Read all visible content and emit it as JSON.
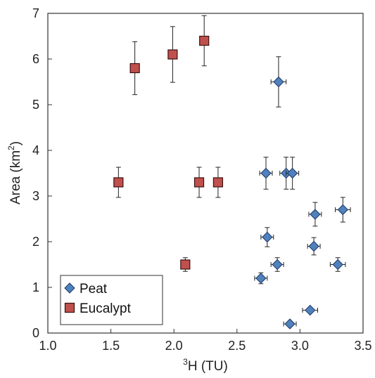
{
  "chart_data": {
    "type": "scatter",
    "xlabel": {
      "superscript": "3",
      "text": "H (TU)"
    },
    "ylabel": {
      "text": "Area (km",
      "superscript": "2",
      "suffix": ")"
    },
    "xlim": [
      1.0,
      3.5
    ],
    "ylim": [
      0,
      7
    ],
    "x_ticks": [
      "1.0",
      "1.5",
      "2.0",
      "2.5",
      "3.0",
      "3.5"
    ],
    "y_ticks": [
      "0",
      "1",
      "2",
      "3",
      "4",
      "5",
      "6",
      "7"
    ],
    "grid": false,
    "legend_position": "bottom-left",
    "series": [
      {
        "name": "Peat",
        "marker": "diamond",
        "color": "#4f81bd",
        "edge_color": "#1f3864",
        "points": [
          {
            "x": 2.83,
            "y": 5.5,
            "xerr": 0.06,
            "yerr": 0.55
          },
          {
            "x": 2.73,
            "y": 3.5,
            "xerr": 0.05,
            "yerr": 0.35
          },
          {
            "x": 2.89,
            "y": 3.5,
            "xerr": 0.05,
            "yerr": 0.35
          },
          {
            "x": 2.94,
            "y": 3.5,
            "xerr": 0.05,
            "yerr": 0.35
          },
          {
            "x": 3.34,
            "y": 2.7,
            "xerr": 0.06,
            "yerr": 0.27
          },
          {
            "x": 3.12,
            "y": 2.6,
            "xerr": 0.05,
            "yerr": 0.26
          },
          {
            "x": 2.74,
            "y": 2.1,
            "xerr": 0.05,
            "yerr": 0.21
          },
          {
            "x": 3.11,
            "y": 1.9,
            "xerr": 0.05,
            "yerr": 0.19
          },
          {
            "x": 2.82,
            "y": 1.5,
            "xerr": 0.05,
            "yerr": 0.15
          },
          {
            "x": 3.3,
            "y": 1.5,
            "xerr": 0.06,
            "yerr": 0.15
          },
          {
            "x": 2.69,
            "y": 1.2,
            "xerr": 0.05,
            "yerr": 0.12
          },
          {
            "x": 3.08,
            "y": 0.5,
            "xerr": 0.06,
            "yerr": 0.05
          },
          {
            "x": 2.92,
            "y": 0.2,
            "xerr": 0.05,
            "yerr": 0.02
          }
        ]
      },
      {
        "name": "Eucalypt",
        "marker": "square",
        "color": "#c0504d",
        "edge_color": "#3a1010",
        "points": [
          {
            "x": 1.56,
            "y": 3.3,
            "xerr": 0.02,
            "yerr": 0.33
          },
          {
            "x": 1.69,
            "y": 5.8,
            "xerr": 0.02,
            "yerr": 0.58
          },
          {
            "x": 1.99,
            "y": 6.1,
            "xerr": 0.02,
            "yerr": 0.61
          },
          {
            "x": 2.09,
            "y": 1.5,
            "xerr": 0.03,
            "yerr": 0.15
          },
          {
            "x": 2.2,
            "y": 3.3,
            "xerr": 0.03,
            "yerr": 0.33
          },
          {
            "x": 2.24,
            "y": 6.4,
            "xerr": 0.03,
            "yerr": 0.55
          },
          {
            "x": 2.35,
            "y": 3.3,
            "xerr": 0.03,
            "yerr": 0.33
          }
        ]
      }
    ]
  }
}
